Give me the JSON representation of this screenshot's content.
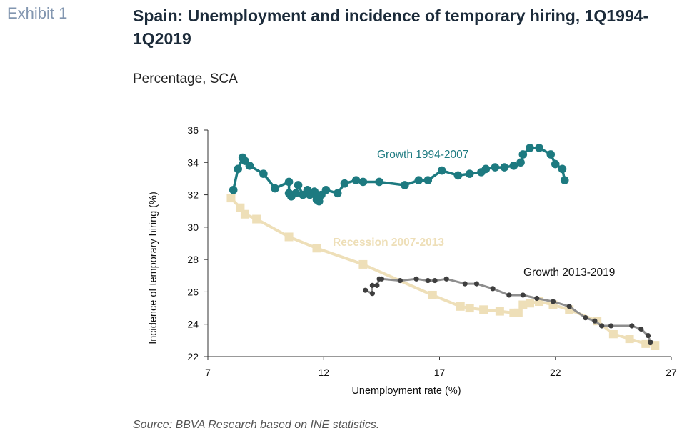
{
  "header": {
    "exhibit": "Exhibit 1",
    "title": "Spain: Unemployment and incidence of temporary hiring, 1Q1994-1Q2019",
    "subtitle": "Percentage, SCA"
  },
  "footer": {
    "source": "Source: BBVA Research based on INE statistics."
  },
  "chart_data": {
    "type": "line",
    "title": "Spain: Unemployment and incidence of temporary hiring, 1Q1994-1Q2019",
    "subtitle": "Percentage, SCA",
    "xlabel": "Unemployment rate (%)",
    "ylabel": "Incidence of temporary hiring (%)",
    "xlim": [
      7,
      27
    ],
    "ylim": [
      22,
      36
    ],
    "xticks": [
      7,
      12,
      17,
      22,
      27
    ],
    "yticks": [
      22,
      24,
      26,
      28,
      30,
      32,
      34,
      36
    ],
    "grid": false,
    "legend": "none",
    "series": [
      {
        "name": "Growth 1994-2007",
        "color": "#1d7a80",
        "marker": "circle",
        "points": [
          [
            22.4,
            32.9
          ],
          [
            22.3,
            33.6
          ],
          [
            22.0,
            33.9
          ],
          [
            21.8,
            34.5
          ],
          [
            21.3,
            34.9
          ],
          [
            20.9,
            34.9
          ],
          [
            20.6,
            34.5
          ],
          [
            20.5,
            34.0
          ],
          [
            20.2,
            33.8
          ],
          [
            19.8,
            33.7
          ],
          [
            19.4,
            33.7
          ],
          [
            19.0,
            33.6
          ],
          [
            18.8,
            33.4
          ],
          [
            18.3,
            33.3
          ],
          [
            17.8,
            33.2
          ],
          [
            17.1,
            33.5
          ],
          [
            16.5,
            32.9
          ],
          [
            16.1,
            32.9
          ],
          [
            15.5,
            32.6
          ],
          [
            14.4,
            32.8
          ],
          [
            13.7,
            32.8
          ],
          [
            13.4,
            32.9
          ],
          [
            12.9,
            32.7
          ],
          [
            12.6,
            32.1
          ],
          [
            12.1,
            32.3
          ],
          [
            11.9,
            32.0
          ],
          [
            11.8,
            31.6
          ],
          [
            11.7,
            31.7
          ],
          [
            11.7,
            31.9
          ],
          [
            11.6,
            32.2
          ],
          [
            11.4,
            32.0
          ],
          [
            11.3,
            32.3
          ],
          [
            11.1,
            32.0
          ],
          [
            10.9,
            32.6
          ],
          [
            10.8,
            32.1
          ],
          [
            10.6,
            31.9
          ],
          [
            10.5,
            32.1
          ],
          [
            10.5,
            32.8
          ],
          [
            9.9,
            32.4
          ],
          [
            9.4,
            33.3
          ],
          [
            8.8,
            33.8
          ],
          [
            8.6,
            34.1
          ],
          [
            8.5,
            34.3
          ],
          [
            8.3,
            33.6
          ],
          [
            8.1,
            32.3
          ]
        ]
      },
      {
        "name": "Recession 2007-2013",
        "color": "#eedfb8",
        "marker": "square",
        "points": [
          [
            8.0,
            31.8
          ],
          [
            8.4,
            31.2
          ],
          [
            8.6,
            30.8
          ],
          [
            9.1,
            30.5
          ],
          [
            10.5,
            29.4
          ],
          [
            11.7,
            28.7
          ],
          [
            13.7,
            27.7
          ],
          [
            16.7,
            25.8
          ],
          [
            17.9,
            25.1
          ],
          [
            18.3,
            25.0
          ],
          [
            18.9,
            24.9
          ],
          [
            19.6,
            24.8
          ],
          [
            20.2,
            24.7
          ],
          [
            20.4,
            24.7
          ],
          [
            20.6,
            25.2
          ],
          [
            20.9,
            25.3
          ],
          [
            21.3,
            25.4
          ],
          [
            21.9,
            25.2
          ],
          [
            22.6,
            24.9
          ],
          [
            23.8,
            24.2
          ],
          [
            24.5,
            23.4
          ],
          [
            25.2,
            23.1
          ],
          [
            25.9,
            22.8
          ],
          [
            26.3,
            22.7
          ]
        ]
      },
      {
        "name": "Growth 2013-2019",
        "color": "#3e3e3e",
        "line_color": "#8e8e8e",
        "marker": "small-circle",
        "points": [
          [
            26.1,
            22.9
          ],
          [
            26.0,
            23.3
          ],
          [
            25.7,
            23.7
          ],
          [
            25.3,
            23.9
          ],
          [
            24.4,
            23.9
          ],
          [
            24.0,
            23.9
          ],
          [
            23.7,
            24.2
          ],
          [
            23.3,
            24.4
          ],
          [
            22.6,
            25.1
          ],
          [
            21.9,
            25.4
          ],
          [
            21.2,
            25.6
          ],
          [
            20.6,
            25.8
          ],
          [
            20.0,
            25.8
          ],
          [
            19.3,
            26.2
          ],
          [
            18.6,
            26.5
          ],
          [
            18.1,
            26.5
          ],
          [
            17.3,
            26.8
          ],
          [
            16.8,
            26.7
          ],
          [
            16.5,
            26.7
          ],
          [
            16.0,
            26.8
          ],
          [
            15.3,
            26.7
          ],
          [
            14.5,
            26.8
          ],
          [
            14.4,
            26.8
          ],
          [
            14.3,
            26.4
          ],
          [
            14.1,
            26.4
          ],
          [
            14.1,
            25.9
          ],
          [
            13.8,
            26.1
          ]
        ]
      }
    ],
    "annotations": [
      {
        "text": "Growth  1994-2007",
        "series": 0
      },
      {
        "text": "Recession 2007-2013",
        "series": 1
      },
      {
        "text": "Growth  2013-2019",
        "series": 2
      }
    ]
  }
}
